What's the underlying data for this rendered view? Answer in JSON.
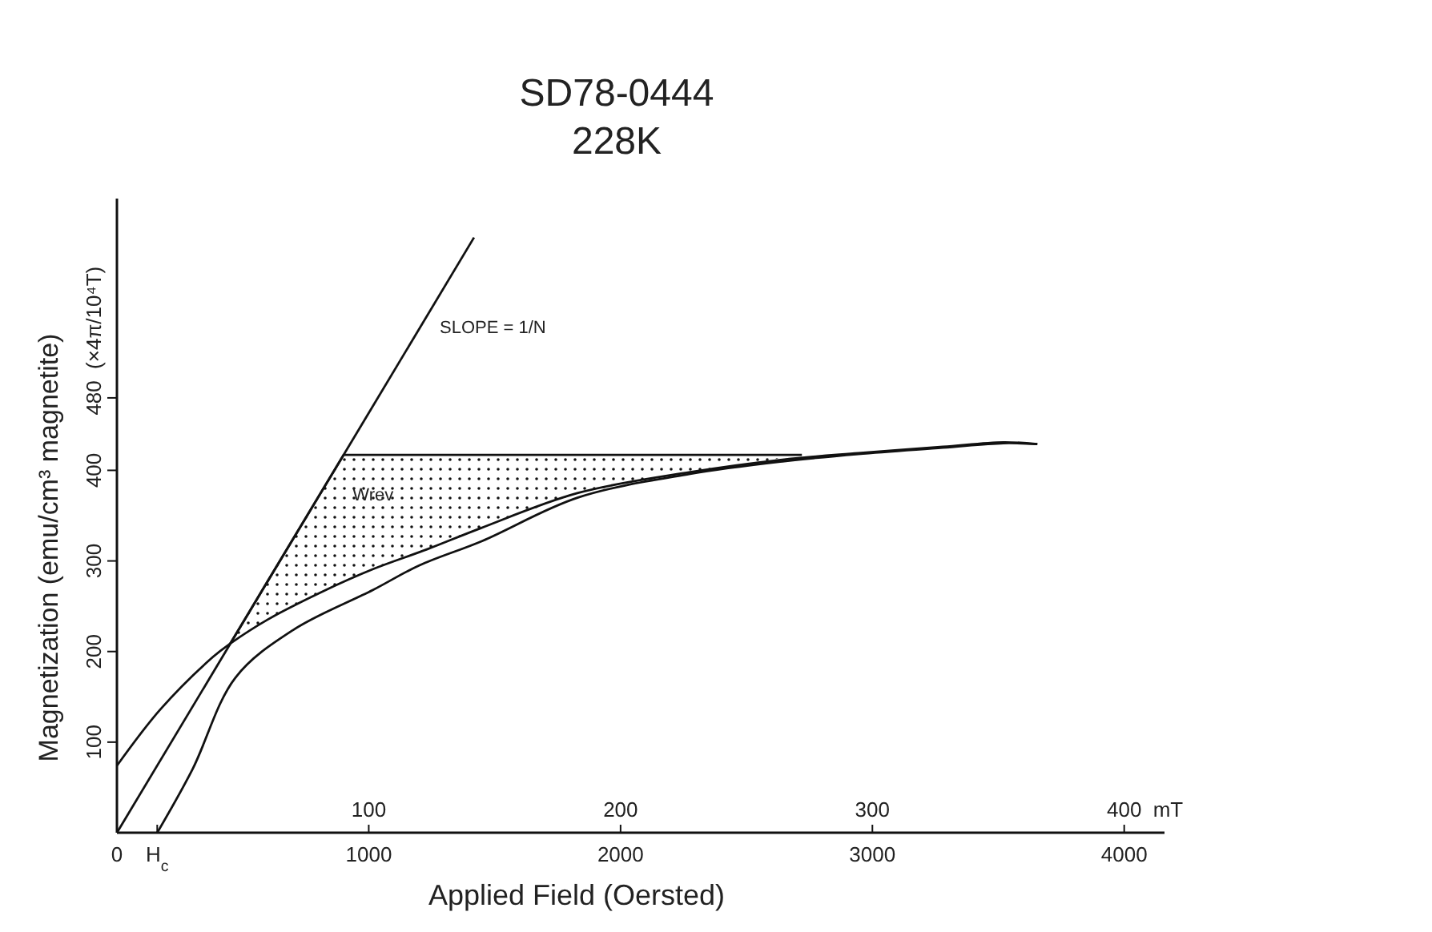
{
  "chart_data": {
    "type": "line",
    "title": "SD78-0444",
    "subtitle": "228K",
    "xlabel": "Applied Field (Oersted)",
    "ylabel": "Magnetization (emu/cm³ magnetite)",
    "x2label": "mT",
    "xlim": [
      0,
      4160
    ],
    "xticks": [
      0,
      {
        "value": 160,
        "label": "H$_{c}$"
      },
      1000,
      2000,
      3000,
      4000
    ],
    "x2lim": [
      0,
      416
    ],
    "x2ticks": [
      100,
      200,
      300,
      400
    ],
    "ylim": [
      0,
      700
    ],
    "yticks": [
      100,
      200,
      300,
      400,
      480
    ],
    "grid": false,
    "marker": "none",
    "line_style": "solid",
    "series": [
      {
        "color": "#111111",
        "x": [
          0,
          1418
        ],
        "values": [
          0,
          657
        ]
      },
      {
        "color": "#111111",
        "x": [
          0,
          172,
          381,
          446,
          597,
          807,
          1017,
          1233,
          1443,
          1831,
          2276,
          2650,
          2944,
          3280,
          3520,
          3655
        ],
        "values": [
          74,
          136,
          194,
          208,
          235,
          265,
          291,
          313,
          336,
          375,
          398,
          412,
          419,
          426,
          431,
          429
        ]
      },
      {
        "color": "#111111",
        "x": [
          160,
          300,
          470,
          701,
          1017,
          1200,
          1450,
          1831,
          2276,
          2650,
          2944,
          3280,
          3520,
          3655
        ],
        "values": [
          0,
          70,
          171,
          224,
          268,
          295,
          322,
          370,
          396,
          410,
          418,
          425,
          430,
          429
        ]
      },
      {
        "color": "#111111",
        "x": [
          446,
          597,
          807,
          900,
          1017,
          1233,
          1443,
          1831,
          2276,
          2720
        ],
        "values": [
          207,
          277,
          374,
          417,
          417,
          417,
          417,
          417,
          417,
          417
        ],
        "lower": [
          207,
          235,
          265,
          277,
          291,
          313,
          336,
          375,
          398,
          417
        ],
        "upper": [
          207,
          277,
          374,
          417,
          417,
          417,
          417,
          417,
          417,
          417
        ]
      }
    ],
    "annotations": [
      "SLOPE = 1/N",
      "Wrev",
      "(×4π/10⁴T)"
    ]
  }
}
